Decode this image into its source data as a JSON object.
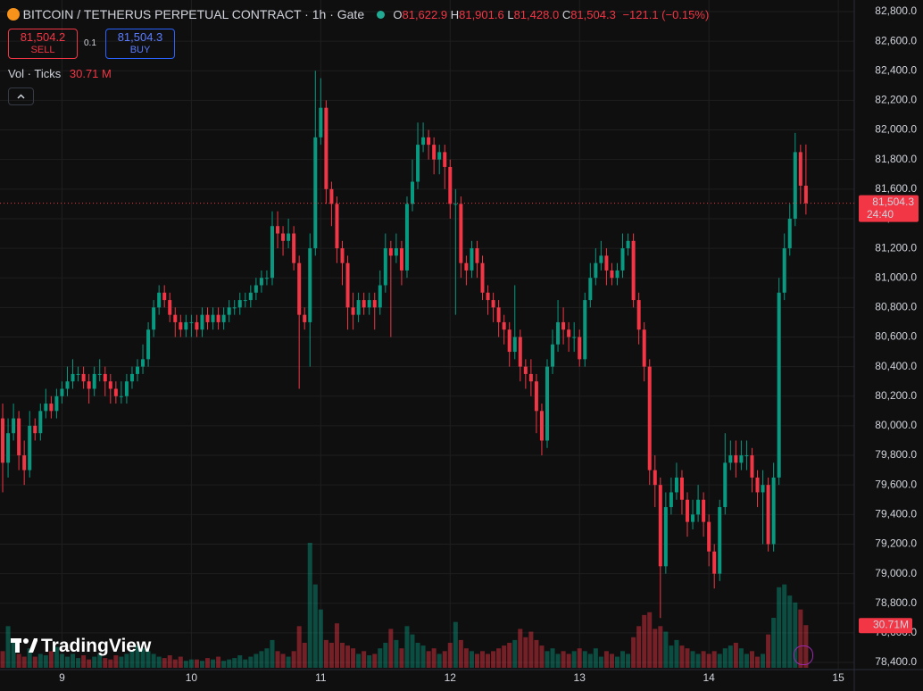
{
  "header": {
    "title": "BITCOIN / TETHERUS PERPETUAL CONTRACT · 1h · Gate",
    "open_key": "O",
    "open": "81,622.9",
    "high_key": "H",
    "high": "81,901.6",
    "low_key": "L",
    "low": "81,428.0",
    "close_key": "C",
    "close": "81,504.3",
    "change": "−121.1 (−0.15%)",
    "sell_price": "81,504.2",
    "sell": "SELL",
    "spread": "0.1",
    "buy_price": "81,504.3",
    "buy": "BUY",
    "volume_legend": "Vol · Ticks",
    "volume_legend_value": "30.71 M",
    "logo": "TradingView"
  },
  "chart_data": {
    "type": "candlestick",
    "up_color": "#089981",
    "down_color": "#f23645",
    "grid": true,
    "last_price_label": "81,504.3",
    "countdown": "24:40",
    "last_volume_label": "30.71M",
    "ylim": [
      78400,
      82800
    ],
    "yticks": [
      {
        "value": 78400,
        "label": "78,400.0"
      },
      {
        "value": 78600,
        "label": "78,600.0"
      },
      {
        "value": 78800,
        "label": "78,800.0"
      },
      {
        "value": 79000,
        "label": "79,000.0"
      },
      {
        "value": 79200,
        "label": "79,200.0"
      },
      {
        "value": 79400,
        "label": "79,400.0"
      },
      {
        "value": 79600,
        "label": "79,600.0"
      },
      {
        "value": 79800,
        "label": "79,800.0"
      },
      {
        "value": 80000,
        "label": "80,000.0"
      },
      {
        "value": 80200,
        "label": "80,200.0"
      },
      {
        "value": 80400,
        "label": "80,400.0"
      },
      {
        "value": 80600,
        "label": "80,600.0"
      },
      {
        "value": 80800,
        "label": "80,800.0"
      },
      {
        "value": 81000,
        "label": "81,000.0"
      },
      {
        "value": 81200,
        "label": "81,200.0"
      },
      {
        "value": 81400,
        "label": "81,400.0"
      },
      {
        "value": 81600,
        "label": "81,600.0"
      },
      {
        "value": 81800,
        "label": "81,800.0"
      },
      {
        "value": 82000,
        "label": "82,000.0"
      },
      {
        "value": 82200,
        "label": "82,200.0"
      },
      {
        "value": 82400,
        "label": "82,400.0"
      },
      {
        "value": 82600,
        "label": "82,600.0"
      },
      {
        "value": 82800,
        "label": "82,800.0"
      }
    ],
    "xlim": [
      -0.5,
      157.3
    ],
    "xticks": [
      {
        "value": 11,
        "label": "9"
      },
      {
        "value": 35,
        "label": "10"
      },
      {
        "value": 59,
        "label": "11"
      },
      {
        "value": 83,
        "label": "12"
      },
      {
        "value": 107,
        "label": "13"
      },
      {
        "value": 131,
        "label": "14"
      },
      {
        "value": 155,
        "label": "15"
      }
    ],
    "open": [
      80050,
      79750,
      79950,
      80050,
      79800,
      79700,
      80000,
      79950,
      80100,
      80150,
      80100,
      80200,
      80250,
      80300,
      80350,
      80350,
      80300,
      80250,
      80350,
      80350,
      80300,
      80250,
      80200,
      80200,
      80300,
      80350,
      80400,
      80450,
      80650,
      80800,
      80900,
      80850,
      80750,
      80700,
      80650,
      80700,
      80700,
      80650,
      80750,
      80700,
      80750,
      80700,
      80750,
      80800,
      80800,
      80850,
      80850,
      80900,
      80950,
      81000,
      81000,
      81350,
      81300,
      81250,
      81300,
      81100,
      80750,
      80700,
      81200,
      81950,
      82150,
      81600,
      81500,
      81200,
      81100,
      80800,
      80750,
      80850,
      80800,
      80850,
      80800,
      80950,
      81200,
      81150,
      81200,
      81050,
      81500,
      81650,
      81900,
      81950,
      81900,
      81800,
      81850,
      81750,
      81500,
      81500,
      81100,
      81050,
      81200,
      81100,
      80900,
      80850,
      80800,
      80700,
      80650,
      80500,
      80600,
      80400,
      80350,
      80300,
      80100,
      79900,
      80400,
      80550,
      80700,
      80650,
      80600,
      80600,
      80450,
      80850,
      81000,
      81100,
      81150,
      81050,
      81000,
      81050,
      81200,
      81250,
      80850,
      80650,
      80400,
      79700,
      79600,
      79050,
      79450,
      79550,
      79650,
      79500,
      79350,
      79400,
      79500,
      79350,
      79150,
      79000,
      79450,
      79750,
      79800,
      79750,
      79800,
      79800,
      79650,
      79550,
      79600,
      79200,
      79650,
      80900,
      81200,
      81400,
      81850,
      81622.9
    ],
    "high": [
      80150,
      80050,
      80150,
      80100,
      79900,
      80100,
      80050,
      80150,
      80250,
      80200,
      80250,
      80300,
      80400,
      80450,
      80400,
      80400,
      80350,
      80400,
      80450,
      80400,
      80350,
      80300,
      80300,
      80350,
      80400,
      80450,
      80550,
      80700,
      80850,
      80950,
      80950,
      80900,
      80800,
      80750,
      80750,
      80750,
      80750,
      80800,
      80800,
      80800,
      80800,
      80800,
      80850,
      80850,
      80900,
      80900,
      80950,
      81000,
      81050,
      81050,
      81450,
      81450,
      81350,
      81400,
      81350,
      81150,
      80800,
      81300,
      82400,
      82350,
      82200,
      81650,
      81550,
      81250,
      81150,
      80900,
      80900,
      80900,
      80900,
      80900,
      81050,
      81300,
      81250,
      81300,
      81250,
      81550,
      81800,
      82050,
      82050,
      82000,
      81950,
      81900,
      81900,
      81800,
      81600,
      81550,
      81150,
      81250,
      81250,
      81150,
      80950,
      80900,
      80850,
      80750,
      80700,
      80950,
      80650,
      80450,
      80450,
      80350,
      80150,
      80450,
      80650,
      80850,
      80800,
      80700,
      80700,
      80650,
      80900,
      81100,
      81200,
      81250,
      81200,
      81100,
      81100,
      81300,
      81300,
      81300,
      80900,
      80700,
      80450,
      79800,
      79650,
      79550,
      79650,
      79750,
      79700,
      79550,
      79500,
      79600,
      79550,
      79400,
      79200,
      79500,
      79950,
      79900,
      79900,
      79900,
      79900,
      79850,
      79700,
      79700,
      79650,
      79750,
      81000,
      81300,
      81500,
      81980,
      81900,
      81901.6
    ],
    "low": [
      79550,
      79650,
      79900,
      79700,
      79600,
      79650,
      79900,
      79900,
      80050,
      80050,
      80050,
      80150,
      80200,
      80250,
      80300,
      80250,
      80150,
      80200,
      80300,
      80200,
      80150,
      80150,
      80150,
      80150,
      80250,
      80300,
      80350,
      80400,
      80600,
      80750,
      80800,
      80700,
      80600,
      80600,
      80600,
      80600,
      80600,
      80600,
      80650,
      80650,
      80650,
      80650,
      80700,
      80750,
      80750,
      80800,
      80800,
      80850,
      80900,
      80950,
      80950,
      81200,
      81150,
      81200,
      81050,
      80250,
      80650,
      80400,
      81150,
      81900,
      81500,
      81350,
      81100,
      80950,
      80650,
      80650,
      80700,
      80750,
      80750,
      80650,
      80750,
      80900,
      80600,
      81100,
      80950,
      81000,
      81450,
      81600,
      81850,
      81800,
      81700,
      81700,
      81600,
      81400,
      80750,
      81000,
      80950,
      81000,
      81000,
      80850,
      80750,
      80700,
      80600,
      80550,
      80400,
      80450,
      80300,
      80250,
      80200,
      79950,
      79800,
      79850,
      80350,
      80500,
      80550,
      80500,
      80500,
      80400,
      80400,
      80800,
      80950,
      81050,
      80950,
      80950,
      80950,
      81000,
      81150,
      80800,
      80550,
      80300,
      79600,
      79450,
      78700,
      79000,
      79400,
      79500,
      79400,
      79250,
      79300,
      79350,
      79250,
      79050,
      78900,
      78950,
      79400,
      79700,
      79650,
      79700,
      79700,
      79550,
      79450,
      79200,
      79150,
      79150,
      79600,
      80850,
      81150,
      81350,
      81500,
      81428.0
    ],
    "close": [
      79750,
      79950,
      80050,
      79800,
      79700,
      80000,
      79950,
      80100,
      80150,
      80100,
      80200,
      80250,
      80300,
      80350,
      80350,
      80300,
      80250,
      80350,
      80350,
      80300,
      80250,
      80200,
      80200,
      80300,
      80350,
      80400,
      80450,
      80650,
      80800,
      80900,
      80850,
      80750,
      80700,
      80650,
      80700,
      80700,
      80650,
      80750,
      80700,
      80750,
      80700,
      80750,
      80800,
      80800,
      80850,
      80850,
      80900,
      80950,
      81000,
      81000,
      81350,
      81300,
      81250,
      81300,
      81100,
      80750,
      80700,
      81200,
      81950,
      82150,
      81600,
      81500,
      81200,
      81100,
      80800,
      80750,
      80850,
      80800,
      80850,
      80800,
      80950,
      81200,
      81150,
      81200,
      81050,
      81500,
      81650,
      81900,
      81950,
      81900,
      81800,
      81850,
      81750,
      81500,
      81500,
      81100,
      81050,
      81200,
      81100,
      80900,
      80850,
      80800,
      80700,
      80650,
      80500,
      80600,
      80400,
      80350,
      80300,
      80100,
      79900,
      80400,
      80550,
      80700,
      80650,
      80600,
      80600,
      80450,
      80850,
      81000,
      81100,
      81150,
      81050,
      81000,
      81050,
      81200,
      81250,
      80850,
      80650,
      80400,
      79700,
      79600,
      79050,
      79450,
      79550,
      79650,
      79500,
      79350,
      79400,
      79500,
      79350,
      79150,
      79000,
      79450,
      79750,
      79800,
      79750,
      79800,
      79800,
      79650,
      79550,
      79600,
      79200,
      79650,
      80900,
      81200,
      81400,
      81850,
      81622.9,
      81504.3
    ],
    "volume": [
      12,
      30,
      20,
      10,
      8,
      14,
      8,
      10,
      9,
      12,
      15,
      10,
      8,
      10,
      7,
      9,
      6,
      8,
      10,
      7,
      6,
      9,
      8,
      10,
      12,
      16,
      14,
      12,
      10,
      8,
      7,
      9,
      6,
      8,
      5,
      6,
      6,
      5,
      7,
      6,
      8,
      5,
      6,
      7,
      9,
      6,
      8,
      10,
      12,
      14,
      20,
      12,
      10,
      8,
      12,
      30,
      18,
      90,
      60,
      42,
      20,
      18,
      32,
      18,
      16,
      14,
      10,
      12,
      9,
      10,
      14,
      18,
      28,
      20,
      14,
      30,
      24,
      18,
      16,
      12,
      14,
      10,
      12,
      18,
      33,
      20,
      14,
      12,
      10,
      12,
      10,
      12,
      14,
      16,
      18,
      20,
      28,
      22,
      26,
      20,
      16,
      12,
      14,
      10,
      12,
      10,
      12,
      14,
      12,
      10,
      14,
      8,
      12,
      10,
      8,
      12,
      10,
      22,
      30,
      38,
      40,
      28,
      30,
      26,
      16,
      20,
      16,
      14,
      12,
      10,
      12,
      10,
      12,
      10,
      14,
      16,
      18,
      14,
      10,
      12,
      8,
      10,
      24,
      36,
      58,
      60,
      52,
      47,
      42,
      30.71
    ]
  }
}
